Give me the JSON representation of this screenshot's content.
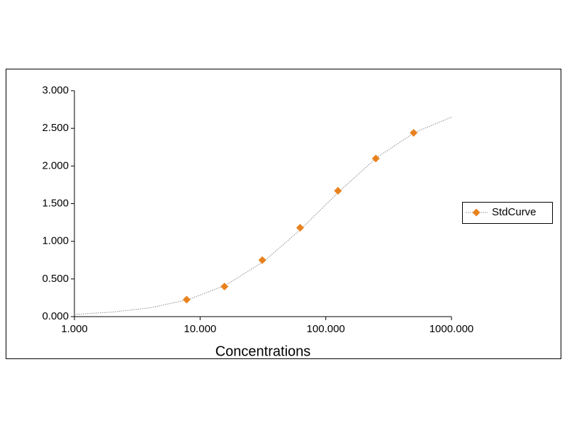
{
  "chart_data": {
    "type": "scatter",
    "x_label": "Concentrations",
    "xscale": "log",
    "xlim": [
      1,
      1000
    ],
    "xticks": [
      {
        "value": 1,
        "label": "1.000"
      },
      {
        "value": 10,
        "label": "10.000"
      },
      {
        "value": 100,
        "label": "100.000"
      },
      {
        "value": 1000,
        "label": "1000.000"
      }
    ],
    "ylim": [
      0,
      3
    ],
    "yticks": [
      {
        "value": 0,
        "label": "0.000"
      },
      {
        "value": 0.5,
        "label": "0.500"
      },
      {
        "value": 1,
        "label": "1.000"
      },
      {
        "value": 1.5,
        "label": "1.500"
      },
      {
        "value": 2,
        "label": "2.000"
      },
      {
        "value": 2.5,
        "label": "2.500"
      },
      {
        "value": 3,
        "label": "3.000"
      }
    ],
    "grid": false,
    "legend": "right",
    "series": [
      {
        "name": "StdCurve",
        "color": "#e8821e",
        "x": [
          7.8125,
          15.625,
          31.25,
          62.5,
          125,
          250,
          500
        ],
        "values": [
          0.226,
          0.4,
          0.75,
          1.18,
          1.67,
          2.1,
          2.44
        ]
      }
    ],
    "curve": {
      "color": "#8c8c8c",
      "x": [
        1,
        2,
        4,
        8,
        16,
        32,
        64,
        128,
        256,
        512,
        1000
      ],
      "y": [
        0.03,
        0.06,
        0.117,
        0.225,
        0.418,
        0.731,
        1.167,
        1.664,
        2.115,
        2.446,
        2.648
      ]
    }
  }
}
